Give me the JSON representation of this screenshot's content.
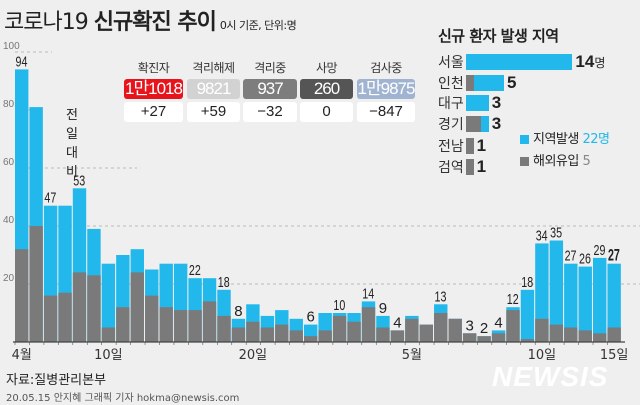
{
  "header": {
    "title_light": "코로나19",
    "title_bold": "신규확진 추이",
    "subtitle": "0시 기준, 단위:명"
  },
  "summary": {
    "diff_label": "전일대비",
    "columns": [
      {
        "label": "확진자",
        "value": "1만1018",
        "diff": "+27",
        "color": "#e8141c",
        "text_color": "#ffffff"
      },
      {
        "label": "격리해제",
        "value": "9821",
        "diff": "+59",
        "color": "#d2d2d2",
        "text_color": "#ffffff"
      },
      {
        "label": "격리중",
        "value": "937",
        "diff": "−32",
        "color": "#7d7d7d",
        "text_color": "#ffffff"
      },
      {
        "label": "사망",
        "value": "260",
        "diff": "0",
        "color": "#555555",
        "text_color": "#ffffff"
      },
      {
        "label": "검사중",
        "value": "1만9875",
        "diff": "−847",
        "color": "#a0b4d2",
        "text_color": "#ffffff"
      }
    ]
  },
  "chart_data": {
    "type": "bar",
    "stacked": true,
    "categories": [
      "4/4",
      "4/5",
      "4/6",
      "4/7",
      "4/8",
      "4/9",
      "4/10",
      "4/11",
      "4/12",
      "4/13",
      "4/14",
      "4/15",
      "4/16",
      "4/17",
      "4/18",
      "4/19",
      "4/20",
      "4/21",
      "4/22",
      "4/23",
      "4/24",
      "4/25",
      "4/26",
      "4/27",
      "4/28",
      "4/29",
      "4/30",
      "5/1",
      "5/2",
      "5/3",
      "5/4",
      "5/5",
      "5/6",
      "5/7",
      "5/8",
      "5/9",
      "5/10",
      "5/11",
      "5/12",
      "5/13",
      "5/14",
      "5/15"
    ],
    "totals": [
      94,
      81,
      47,
      47,
      53,
      39,
      27,
      30,
      32,
      25,
      27,
      27,
      22,
      22,
      18,
      8,
      13,
      9,
      11,
      8,
      6,
      10,
      10,
      10,
      14,
      9,
      4,
      9,
      6,
      13,
      8,
      3,
      2,
      4,
      12,
      18,
      34,
      35,
      27,
      26,
      29,
      27
    ],
    "series": [
      {
        "name": "해외유입",
        "color": "#7a7a7a",
        "values": [
          32,
          40,
          16,
          17,
          24,
          23,
          5,
          12,
          24,
          16,
          12,
          11,
          11,
          14,
          9,
          5,
          7,
          5,
          6,
          4,
          2,
          4,
          9,
          7,
          12,
          5,
          4,
          8,
          6,
          10,
          8,
          3,
          2,
          3,
          11,
          1,
          8,
          6,
          5,
          4,
          3,
          5
        ]
      },
      {
        "name": "지역발생",
        "color": "#22b8eb",
        "values": [
          62,
          41,
          31,
          30,
          29,
          16,
          22,
          18,
          8,
          9,
          15,
          16,
          11,
          8,
          9,
          3,
          6,
          4,
          5,
          4,
          4,
          6,
          1,
          3,
          2,
          4,
          0,
          1,
          0,
          3,
          0,
          0,
          0,
          1,
          1,
          17,
          26,
          29,
          22,
          22,
          26,
          22
        ]
      }
    ],
    "data_labels": {
      "0": "94",
      "2": "47",
      "4": "53",
      "12": "22",
      "14": "18",
      "15": "8",
      "20": "6",
      "22": "10",
      "24": "14",
      "25": "9",
      "26": "4",
      "29": "13",
      "31": "3",
      "32": "2",
      "33": "4",
      "34": "12",
      "35": "18",
      "36": "34",
      "37": "35",
      "38": "27",
      "39": "26",
      "40": "29",
      "41": "27"
    },
    "x_tick_labels": [
      {
        "index": 0,
        "label": "4월"
      },
      {
        "index": 6,
        "label": "10일"
      },
      {
        "index": 16,
        "label": "20일"
      },
      {
        "index": 27,
        "label": "5월"
      },
      {
        "index": 36,
        "label": "10일"
      },
      {
        "index": 41,
        "label": "15일"
      }
    ],
    "y_ticks": [
      20,
      40,
      60,
      80,
      100
    ],
    "ylim": [
      0,
      100
    ],
    "grid": true
  },
  "regions": {
    "title": "신규 환자 발생 지역",
    "unit": "명",
    "items": [
      {
        "name": "서울",
        "total": 14,
        "imported": 0,
        "label": "14"
      },
      {
        "name": "인천",
        "total": 5,
        "imported": 1,
        "label": "5"
      },
      {
        "name": "대구",
        "total": 3,
        "imported": 0,
        "label": "3"
      },
      {
        "name": "경기",
        "total": 3,
        "imported": 2,
        "label": "3"
      },
      {
        "name": "전남",
        "total": 1,
        "imported": 1,
        "label": "1"
      },
      {
        "name": "검역",
        "total": 1,
        "imported": 1,
        "label": "1"
      }
    ],
    "legend": [
      {
        "label": "지역발생",
        "value": "22명",
        "color": "#22b8eb"
      },
      {
        "label": "해외유입",
        "value": "5",
        "color": "#7a7a7a"
      }
    ]
  },
  "footer": {
    "source": "자료:질병관리본부",
    "credit": "20.05.15 안지혜 그래픽 기자 hokma@newsis.com",
    "logo": "NEWSIS"
  }
}
